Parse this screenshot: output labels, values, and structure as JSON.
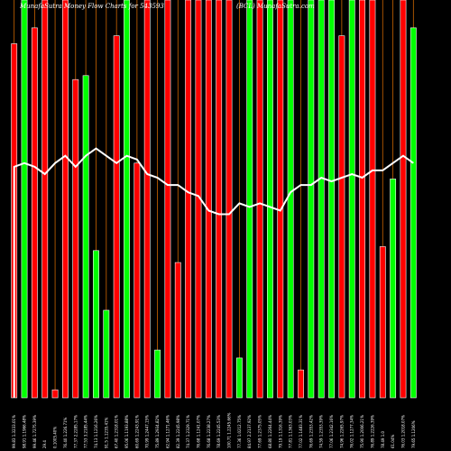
{
  "chart_data": {
    "type": "bar",
    "title": "MunafaSutra Money Flow  Charts for 543593",
    "subtitle": "(BCL)  MunafaSutra.com",
    "colors": {
      "background": "#000000",
      "up": "#00ff00",
      "down": "#ff0000",
      "line": "#ffffff",
      "marker": "#cc6600"
    },
    "ylim": [
      0,
      100
    ],
    "categories": [
      "Fri 21 Mar 2025",
      "Thu 20 Mar 2025",
      "Wed 19 Mar 2025",
      "Tue 18 Mar 2025",
      "Mon 17 Mar 2025",
      "Thu 13 Mar 2025",
      "Wed 12 Mar 2025",
      "Tue 11 Mar 2025",
      "Mon 10 Mar 2025",
      "Fri 07 Mar 2025",
      "Thu 06 Mar 2025",
      "Wed 05 Mar 2025",
      "Tue 04 Mar 2025",
      "Mon 03 Mar 2025",
      "Fri 28 Feb 2025",
      "Thu 27 Feb 2025",
      "Tue 25 Feb 2025",
      "Mon 24 Feb 2025",
      "Fri 21 Feb 2025",
      "Thu 20 Feb 2025",
      "Wed 19 Feb 2025",
      "Tue 18 Feb 2025",
      "Mon 17 Feb 2025",
      "Fri 14 Feb 2025",
      "Thu 13 Feb 2025",
      "Wed 12 Feb 2025",
      "Tue 11 Feb 2025",
      "Mon 10 Feb 2025",
      "Fri 07 Feb 2025",
      "Thu 06 Feb 2025",
      "Wed 05 Feb 2025",
      "Tue 04 Feb 2025",
      "Mon 03 Feb 2025",
      "Sat 01 Feb 2025",
      "Fri 31 Jan 2025",
      "Thu 30 Jan 2025",
      "Wed 29 Jan 2025",
      "Tue 28 Jan 2025",
      "Mon 27 Jan 2025",
      "Fri 24 Jan 2025"
    ],
    "series": [
      {
        "name": "Money Flow",
        "values": [
          89,
          100,
          93,
          100,
          2,
          100,
          80,
          81,
          37,
          22,
          91,
          100,
          59,
          100,
          12,
          100,
          34,
          100,
          100,
          100,
          100,
          100,
          10,
          100,
          100,
          100,
          100,
          100,
          7,
          100,
          100,
          100,
          91,
          100,
          100,
          100,
          38,
          55,
          100,
          93
        ],
        "direction": [
          "down",
          "up",
          "down",
          "down",
          "down",
          "down",
          "down",
          "up",
          "up",
          "up",
          "down",
          "up",
          "down",
          "down",
          "up",
          "down",
          "down",
          "down",
          "down",
          "down",
          "down",
          "down",
          "up",
          "up",
          "down",
          "up",
          "down",
          "up",
          "down",
          "up",
          "up",
          "up",
          "down",
          "up",
          "down",
          "down",
          "down",
          "up",
          "down",
          "up"
        ]
      },
      {
        "name": "MFI",
        "values": [
          63,
          64,
          63,
          61,
          64,
          66,
          63,
          66,
          68,
          66,
          64,
          66,
          65,
          61,
          60,
          58,
          58,
          56,
          55,
          51,
          50,
          50,
          53,
          52,
          53,
          52,
          51,
          56,
          58,
          58,
          60,
          59,
          60,
          61,
          60,
          62,
          62,
          64,
          66,
          64
        ]
      }
    ],
    "last_value": 45,
    "x_labels": [
      "99.83 1.3233.01%",
      "98.91 1.1966.48%",
      "99.46 1.7275.39%",
      "29.4",
      "0.1005.40%",
      "76.40 1.226.71%",
      "77.37 2.2285.17%",
      "77.53 3.2185.44%",
      "74.13 1.1216.26%",
      "91.5 1.1235.41%",
      "67.40 1.2318.01%",
      "95.06 1.1193.88%",
      "60.69 1.2243.91%",
      "70.99 1.2447.15%",
      "75.89 1.2934.82%",
      "62.94 1.1271.46%",
      "82.39 1.2245.98%",
      "74.37 1.2329.71%",
      "76.68 1.1241.07%",
      "76.68 1.2238.27%",
      "78.69 1.2245.53%",
      "100.71 1.2245.66%",
      "77.36 1.0212.75%",
      "84.97 2.2137.92%",
      "77.69 1.2375.05%",
      "68.80 1.2264.44%",
      "79.19 1.1316.39%",
      "77.81 1.1363.03%",
      "77.02 1.1483.31%",
      "76.69 1.2353.42%",
      "74.59 1.2353.39%",
      "77.06 1.2342.16%",
      "74.96 1.2265.97%",
      "76.02 1.1277.34%",
      "75.90 1.2006.21%",
      "76.89 1.2226.39%",
      "78.49 1.0",
      "61.04%",
      "76.03 1.2018.07%",
      "79.65 1.1206%"
    ]
  }
}
